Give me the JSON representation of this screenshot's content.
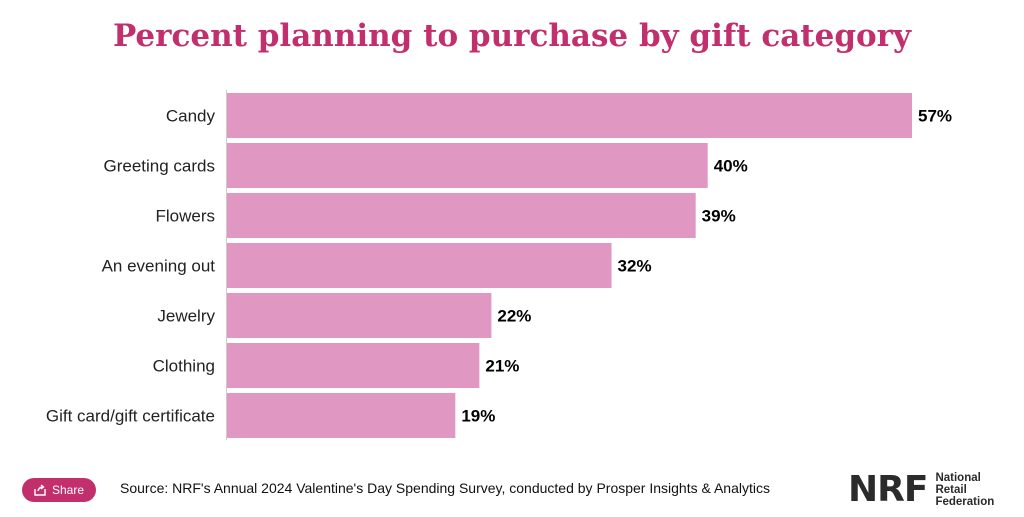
{
  "colors": {
    "title": "#c1306d",
    "bar": "#e098c2",
    "axis": "#cccccc",
    "share_button": "#c1306d",
    "logo": "#2b2b2b"
  },
  "chart_data": {
    "type": "bar",
    "orientation": "horizontal",
    "title": "Percent planning to purchase by gift category",
    "categories": [
      "Candy",
      "Greeting cards",
      "Flowers",
      "An evening out",
      "Jewelry",
      "Clothing",
      "Gift card/gift certificate"
    ],
    "values": [
      57,
      40,
      39,
      32,
      22,
      21,
      19
    ],
    "value_labels": [
      "57%",
      "40%",
      "39%",
      "32%",
      "22%",
      "21%",
      "19%"
    ],
    "xlabel": "",
    "ylabel": "",
    "xlim": [
      0,
      57
    ],
    "grid": false
  },
  "footer": {
    "share_label": "Share",
    "share_icon": "share-icon",
    "source": "Source: NRF's Annual 2024 Valentine's Day Spending Survey, conducted by Prosper Insights & Analytics"
  },
  "logo": {
    "mark": "NRF",
    "lines": [
      "National",
      "Retail",
      "Federation"
    ]
  }
}
